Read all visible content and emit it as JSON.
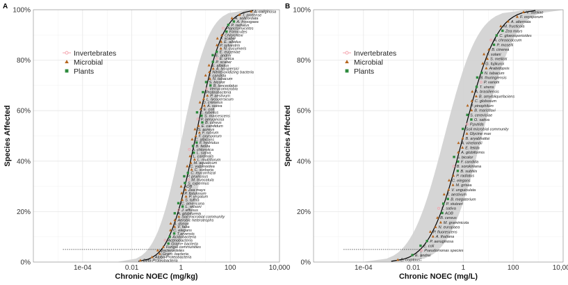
{
  "chart_data": [
    {
      "panel_label": "A",
      "type": "scatter",
      "xlabel": "Chronic NOEC (mg/kg)",
      "ylabel": "Species Affected",
      "x_scale": "log10",
      "xlim": [
        1e-06,
        10000
      ],
      "ylim": [
        0,
        1
      ],
      "x_ticks": [
        0.0001,
        0.01,
        1,
        100,
        10000
      ],
      "x_tick_labels": [
        "1e-04",
        "0.01",
        "1",
        "100",
        "10,000"
      ],
      "y_ticks": [
        0,
        0.2,
        0.4,
        0.6,
        0.8,
        1.0
      ],
      "y_tick_labels": [
        "0%",
        "20%",
        "40%",
        "60%",
        "80%",
        "100%"
      ],
      "grid": true,
      "legend_position": "top-left",
      "legend": [
        {
          "name": "Invertebrates",
          "color": "#f4a0aa",
          "marker": "circle-line"
        },
        {
          "name": "Microbial",
          "color": "#b5651d",
          "marker": "triangle"
        },
        {
          "name": "Plants",
          "color": "#2e8b3e",
          "marker": "square"
        }
      ],
      "fit_curve": {
        "type": "log-normal-cdf",
        "log10_median": 0.6,
        "log10_sd": 0.85,
        "color": "#000000"
      },
      "confidence_band": {
        "color": "#d3d3d3",
        "log10_halfwidth": 0.55
      },
      "hc5_reference": {
        "percent": 0.05,
        "log10_x": -0.8
      },
      "species": [
        "Beta-Proteobacteria",
        "Alpha-Proteobacteria",
        "Gram- bacteria",
        "Bacteroidetes",
        "Fungal communities",
        "Gram+ bacteria",
        "Actinobacteria",
        "Acidobacteria",
        "T.arvensis",
        "C. elegans",
        "V. faba",
        "A. donax",
        "Aerobic heterotrophs",
        "Soil microbial community",
        "A. globiformis",
        "J. effusus",
        "L. wilsoni",
        "C. americana",
        "S. tuftita",
        "P. virgatum",
        "P. fistulosum",
        "Zea mays",
        "AOB",
        "S. cyperinus",
        "M. truncatula",
        "P. pruinosus",
        "C. mycorrhizal",
        "C. sorbaria",
        "C. vulpinoidea",
        "M. aquaticum",
        "L. multiflorum",
        "L. cardinalis",
        "L. sativa",
        "A. chlorotica",
        "B. fetida",
        "F. hydriulus",
        "C. albicans",
        "F. oxysporum",
        "F. rubrum",
        "S. aureus",
        "E. candidum",
        "B. cereus",
        "P. aeruginosa",
        "S. marcescens",
        "C. rubellus",
        "E. coli",
        "A. sativa",
        "D. crenatus",
        "L. lycopersicum",
        "P. aestivum",
        "Proteobacteria",
        "Verrucomicrobia",
        "B. lanceolatus",
        "S. bicolor",
        "N. tabacum",
        "F. candida",
        "Nitrite-oxidizing bacteria",
        "A. lycopersici",
        "E. albidus",
        "P. scaber",
        "E. urtica",
        "E. andrei",
        "E. eugeniae",
        "N. cucumeris",
        "P. sylvestris",
        "E. albidus",
        "F. scaber",
        "Chloroflexi",
        "Firmicutes",
        "Planctomycetes",
        "P. radiatus",
        "A. hypogaea",
        "A. solicordata",
        "T. pratense",
        "A. caliginosa"
      ]
    },
    {
      "panel_label": "B",
      "type": "scatter",
      "xlabel": "Chronic NOEC (mg/L)",
      "ylabel": "Species Affected",
      "x_scale": "log10",
      "xlim": [
        1e-06,
        10000
      ],
      "ylim": [
        0,
        1
      ],
      "x_ticks": [
        0.0001,
        0.01,
        1,
        100,
        10000
      ],
      "x_tick_labels": [
        "1e-04",
        "0.01",
        "1",
        "100",
        "10,000"
      ],
      "y_ticks": [
        0,
        0.2,
        0.4,
        0.6,
        0.8,
        1.0
      ],
      "y_tick_labels": [
        "0%",
        "20%",
        "40%",
        "60%",
        "80%",
        "100%"
      ],
      "grid": true,
      "legend_position": "top-left",
      "legend": [
        {
          "name": "Invertebrates",
          "color": "#f4a0aa",
          "marker": "circle-line"
        },
        {
          "name": "Microbial",
          "color": "#b5651d",
          "marker": "triangle"
        },
        {
          "name": "Plants",
          "color": "#2e8b3e",
          "marker": "square"
        }
      ],
      "fit_curve": {
        "type": "log-normal-cdf",
        "log10_median": 0.0,
        "log10_sd": 1.05,
        "color": "#000000"
      },
      "confidence_band": {
        "color": "#d3d3d3",
        "log10_halfwidth": 0.75
      },
      "hc5_reference": {
        "percent": 0.05,
        "log10_x": -1.7
      },
      "species": [
        "E. cryptous",
        "E. andrei",
        "Pseudomonas species",
        "E. coli",
        "P. aeruginosa",
        "A. thaliana",
        "P. fluorescens",
        "N. europaea",
        "M. graminicola",
        "B. cereus",
        "AOB",
        "L. sativa",
        "P. stutzeri",
        "B. megaterium",
        "T. aestivum",
        "V. unguiculata",
        "M. grisea",
        "C. elegans",
        "P. radiatus",
        "B. subtilis",
        "B. sorokiniana",
        "F. candida",
        "S. bicolor",
        "A. globiformis",
        "E. fetida",
        "A. vinelandii",
        "B. aryabhattai",
        "Glycine max",
        "Soil microbial community",
        "P.putida",
        "O. sativa",
        "S. cerevisiae",
        "B. marisflavi",
        "P. pinophilum",
        "C. globosum",
        "B. amyloliquefaciens",
        "A. brasiliensis",
        "T. virens",
        "P. variotii",
        "B. thuringiensis",
        "N. tabacum",
        "Arabidopsis",
        "G. fujikuroi",
        "S. meliloti",
        "F. solani",
        "B. cinerea",
        "P. moselli",
        "A. chroococcum",
        "C. gloeosporioides",
        "Zea mays",
        "M. fructicola",
        "A. alternata",
        "F. oxysporum",
        "V. dahliae"
      ]
    }
  ]
}
